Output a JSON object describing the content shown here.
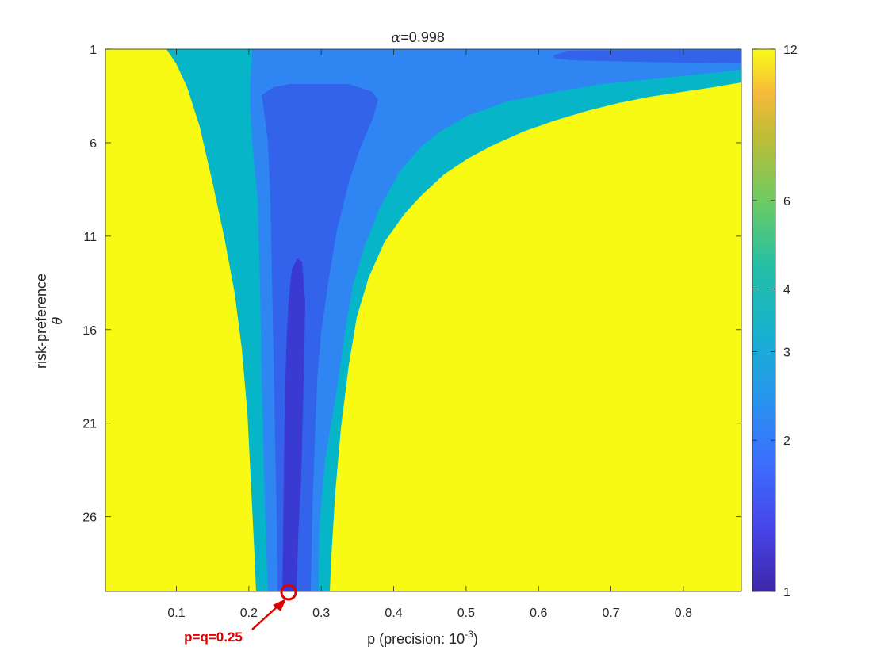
{
  "chart_data": {
    "type": "heatmap",
    "title": "α=0.998",
    "title_symbol": "α",
    "title_value": "=0.998",
    "xlabel": "p (precision: 10",
    "xlabel_exponent": "-3",
    "xlabel_suffix": ")",
    "ylabel": "risk-preference",
    "ylabel_symbol": "θ",
    "xlim": [
      0.002,
      0.88
    ],
    "ylim": [
      1,
      30
    ],
    "y_reversed": true,
    "xticks": [
      "0.1",
      "0.2",
      "0.3",
      "0.4",
      "0.5",
      "0.6",
      "0.7",
      "0.8"
    ],
    "yticks": [
      "1",
      "6",
      "11",
      "16",
      "21",
      "26"
    ],
    "colorbar": {
      "ticks": [
        "1",
        "2",
        "3",
        "4",
        "6",
        "12"
      ],
      "tick_values": [
        1,
        2,
        3,
        4,
        6,
        12
      ],
      "scale": "log",
      "colormap": "parula"
    },
    "contour_levels": [
      {
        "level": 12,
        "color": "#f9fa14"
      },
      {
        "level": 6,
        "color": "#06b5c8"
      },
      {
        "level": 4,
        "color": "#2f86f2"
      },
      {
        "level": 3,
        "color": "#3363eb"
      },
      {
        "level": 2,
        "color": "#3f44d6"
      },
      {
        "level": 1.6,
        "color": "#3a34d1"
      }
    ],
    "annotations": [
      {
        "text": "p=q=0.25",
        "x": 0.255,
        "y": 30
      }
    ]
  }
}
